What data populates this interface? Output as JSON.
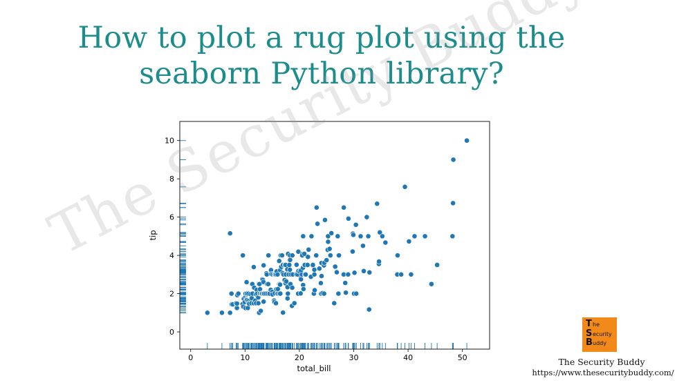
{
  "page": {
    "headline_line1": "How to plot a rug plot using the",
    "headline_line2": "seaborn Python library?"
  },
  "watermark": {
    "text": "The Security Buddy"
  },
  "brand": {
    "logo_letters": [
      {
        "cap": "T",
        "rest": "he"
      },
      {
        "cap": "S",
        "rest": "ecurity"
      },
      {
        "cap": "B",
        "rest": "uddy"
      }
    ],
    "name": "The Security Buddy",
    "url": "https://www.thesecuritybuddy.com/",
    "logo_color": "#f28a1b"
  },
  "chart_data": {
    "type": "scatter",
    "title": "",
    "xlabel": "total_bill",
    "ylabel": "tip",
    "xlim": [
      -2,
      55
    ],
    "ylim": [
      -0.9,
      11
    ],
    "xticks": [
      0,
      10,
      20,
      30,
      40,
      50
    ],
    "yticks": [
      0,
      2,
      4,
      6,
      8,
      10
    ],
    "grid": false,
    "rug": {
      "x_axis": true,
      "y_axis": true
    },
    "point_color": "#1f77b4",
    "series": [
      {
        "points": [
          [
            3.07,
            1.0
          ],
          [
            5.75,
            1.0
          ],
          [
            7.25,
            1.0
          ],
          [
            7.25,
            5.15
          ],
          [
            7.51,
            2.0
          ],
          [
            7.56,
            1.44
          ],
          [
            7.74,
            1.44
          ],
          [
            8.35,
            1.5
          ],
          [
            8.51,
            1.25
          ],
          [
            8.52,
            1.48
          ],
          [
            8.58,
            1.92
          ],
          [
            8.77,
            2.0
          ],
          [
            9.55,
            1.45
          ],
          [
            9.6,
            4.0
          ],
          [
            9.68,
            1.32
          ],
          [
            9.78,
            1.73
          ],
          [
            9.94,
            1.56
          ],
          [
            10.07,
            1.25
          ],
          [
            10.07,
            1.83
          ],
          [
            10.09,
            2.0
          ],
          [
            10.27,
            1.71
          ],
          [
            10.29,
            2.6
          ],
          [
            10.33,
            1.67
          ],
          [
            10.33,
            2.0
          ],
          [
            10.34,
            1.66
          ],
          [
            10.34,
            2.0
          ],
          [
            10.51,
            1.25
          ],
          [
            10.59,
            1.61
          ],
          [
            10.63,
            2.0
          ],
          [
            10.65,
            1.5
          ],
          [
            10.77,
            1.47
          ],
          [
            11.02,
            1.98
          ],
          [
            11.17,
            1.5
          ],
          [
            11.24,
            1.76
          ],
          [
            11.35,
            2.5
          ],
          [
            11.38,
            2.0
          ],
          [
            11.59,
            1.5
          ],
          [
            11.61,
            3.39
          ],
          [
            11.69,
            2.31
          ],
          [
            11.87,
            1.63
          ],
          [
            12.02,
            1.97
          ],
          [
            12.03,
            1.5
          ],
          [
            12.16,
            2.2
          ],
          [
            12.26,
            2.0
          ],
          [
            12.43,
            1.8
          ],
          [
            12.46,
            1.5
          ],
          [
            12.48,
            2.52
          ],
          [
            12.54,
            2.5
          ],
          [
            12.6,
            1.0
          ],
          [
            12.66,
            2.5
          ],
          [
            12.69,
            2.0
          ],
          [
            12.74,
            2.01
          ],
          [
            12.76,
            2.23
          ],
          [
            12.9,
            1.1
          ],
          [
            13.0,
            2.0
          ],
          [
            13.03,
            2.0
          ],
          [
            13.13,
            2.0
          ],
          [
            13.16,
            2.75
          ],
          [
            13.28,
            2.72
          ],
          [
            13.37,
            2.0
          ],
          [
            13.39,
            2.61
          ],
          [
            13.42,
            1.58
          ],
          [
            13.42,
            3.48
          ],
          [
            13.51,
            2.0
          ],
          [
            13.81,
            2.0
          ],
          [
            13.94,
            3.06
          ],
          [
            14.0,
            3.0
          ],
          [
            14.07,
            2.5
          ],
          [
            14.15,
            2.0
          ],
          [
            14.26,
            2.5
          ],
          [
            14.31,
            4.0
          ],
          [
            14.48,
            2.0
          ],
          [
            14.52,
            2.0
          ],
          [
            14.73,
            2.2
          ],
          [
            14.78,
            3.23
          ],
          [
            14.83,
            3.02
          ],
          [
            15.01,
            2.09
          ],
          [
            15.04,
            1.96
          ],
          [
            15.06,
            3.0
          ],
          [
            15.36,
            1.64
          ],
          [
            15.38,
            3.0
          ],
          [
            15.42,
            1.57
          ],
          [
            15.48,
            2.02
          ],
          [
            15.53,
            3.0
          ],
          [
            15.69,
            1.5
          ],
          [
            15.69,
            3.0
          ],
          [
            15.77,
            2.23
          ],
          [
            15.81,
            3.16
          ],
          [
            15.95,
            2.0
          ],
          [
            15.98,
            2.03
          ],
          [
            15.98,
            3.0
          ],
          [
            16.0,
            2.0
          ],
          [
            16.04,
            2.24
          ],
          [
            16.27,
            2.5
          ],
          [
            16.29,
            3.71
          ],
          [
            16.31,
            2.0
          ],
          [
            16.4,
            2.5
          ],
          [
            16.45,
            2.47
          ],
          [
            16.47,
            3.23
          ],
          [
            16.49,
            2.0
          ],
          [
            16.58,
            4.0
          ],
          [
            16.66,
            3.4
          ],
          [
            16.82,
            4.0
          ],
          [
            16.93,
            3.07
          ],
          [
            16.97,
            3.5
          ],
          [
            16.99,
            1.01
          ],
          [
            17.07,
            3.0
          ],
          [
            17.29,
            2.71
          ],
          [
            17.31,
            3.5
          ],
          [
            17.46,
            2.54
          ],
          [
            17.47,
            3.5
          ],
          [
            17.51,
            3.0
          ],
          [
            17.59,
            2.64
          ],
          [
            17.78,
            3.27
          ],
          [
            17.81,
            2.34
          ],
          [
            17.82,
            1.75
          ],
          [
            17.89,
            2.0
          ],
          [
            17.92,
            4.08
          ],
          [
            18.04,
            3.0
          ],
          [
            18.15,
            3.5
          ],
          [
            18.24,
            3.76
          ],
          [
            18.26,
            3.25
          ],
          [
            18.28,
            4.0
          ],
          [
            18.29,
            3.76
          ],
          [
            18.35,
            2.5
          ],
          [
            18.43,
            3.0
          ],
          [
            18.64,
            1.36
          ],
          [
            18.69,
            2.31
          ],
          [
            18.71,
            4.0
          ],
          [
            18.78,
            3.0
          ],
          [
            19.08,
            1.5
          ],
          [
            19.44,
            3.0
          ],
          [
            19.49,
            3.51
          ],
          [
            19.65,
            3.0
          ],
          [
            19.77,
            2.0
          ],
          [
            19.81,
            4.19
          ],
          [
            19.82,
            3.18
          ],
          [
            20.08,
            3.15
          ],
          [
            20.23,
            2.01
          ],
          [
            20.27,
            2.83
          ],
          [
            20.29,
            2.75
          ],
          [
            20.29,
            3.21
          ],
          [
            20.45,
            3.0
          ],
          [
            20.49,
            4.06
          ],
          [
            20.53,
            4.0
          ],
          [
            20.65,
            3.35
          ],
          [
            20.69,
            2.45
          ],
          [
            20.69,
            5.0
          ],
          [
            20.76,
            2.24
          ],
          [
            20.9,
            3.5
          ],
          [
            20.92,
            4.08
          ],
          [
            21.01,
            3.5
          ],
          [
            21.01,
            3.0
          ],
          [
            21.16,
            3.0
          ],
          [
            21.5,
            3.5
          ],
          [
            21.58,
            3.92
          ],
          [
            21.7,
            4.3
          ],
          [
            22.12,
            2.88
          ],
          [
            22.23,
            5.0
          ],
          [
            22.42,
            3.48
          ],
          [
            22.49,
            3.5
          ],
          [
            22.67,
            2.0
          ],
          [
            22.75,
            3.25
          ],
          [
            22.76,
            3.0
          ],
          [
            22.82,
            2.18
          ],
          [
            23.1,
            4.0
          ],
          [
            23.17,
            6.5
          ],
          [
            23.33,
            5.65
          ],
          [
            23.68,
            3.31
          ],
          [
            23.95,
            2.55
          ],
          [
            24.01,
            2.0
          ],
          [
            24.06,
            3.6
          ],
          [
            24.08,
            2.92
          ],
          [
            24.27,
            2.03
          ],
          [
            24.52,
            3.48
          ],
          [
            24.55,
            2.0
          ],
          [
            24.59,
            3.61
          ],
          [
            24.71,
            5.85
          ],
          [
            25.0,
            3.75
          ],
          [
            25.21,
            4.29
          ],
          [
            25.28,
            5.0
          ],
          [
            25.29,
            4.71
          ],
          [
            25.56,
            4.34
          ],
          [
            25.71,
            4.0
          ],
          [
            25.89,
            5.16
          ],
          [
            26.41,
            1.5
          ],
          [
            26.59,
            3.41
          ],
          [
            26.86,
            3.14
          ],
          [
            26.88,
            3.12
          ],
          [
            27.05,
            5.0
          ],
          [
            27.18,
            2.0
          ],
          [
            27.2,
            4.0
          ],
          [
            27.28,
            4.0
          ],
          [
            28.15,
            3.0
          ],
          [
            28.17,
            6.5
          ],
          [
            28.44,
            2.56
          ],
          [
            28.55,
            2.05
          ],
          [
            28.97,
            3.0
          ],
          [
            29.03,
            5.92
          ],
          [
            29.8,
            4.2
          ],
          [
            29.85,
            5.14
          ],
          [
            29.93,
            5.07
          ],
          [
            30.06,
            2.0
          ],
          [
            30.14,
            3.09
          ],
          [
            30.4,
            5.6
          ],
          [
            30.46,
            2.0
          ],
          [
            31.27,
            5.0
          ],
          [
            31.71,
            4.5
          ],
          [
            31.85,
            3.18
          ],
          [
            32.4,
            6.0
          ],
          [
            32.68,
            5.0
          ],
          [
            32.83,
            1.17
          ],
          [
            32.9,
            3.11
          ],
          [
            34.3,
            6.7
          ],
          [
            34.63,
            3.55
          ],
          [
            34.65,
            3.68
          ],
          [
            34.81,
            5.2
          ],
          [
            35.26,
            5.0
          ],
          [
            35.83,
            4.67
          ],
          [
            38.01,
            3.0
          ],
          [
            38.07,
            4.0
          ],
          [
            38.73,
            3.0
          ],
          [
            39.42,
            7.58
          ],
          [
            40.17,
            4.73
          ],
          [
            40.55,
            3.0
          ],
          [
            41.19,
            5.0
          ],
          [
            43.11,
            5.0
          ],
          [
            44.3,
            2.5
          ],
          [
            45.35,
            3.5
          ],
          [
            48.17,
            5.0
          ],
          [
            48.27,
            6.73
          ],
          [
            48.33,
            9.0
          ],
          [
            50.81,
            10.0
          ]
        ]
      }
    ]
  }
}
